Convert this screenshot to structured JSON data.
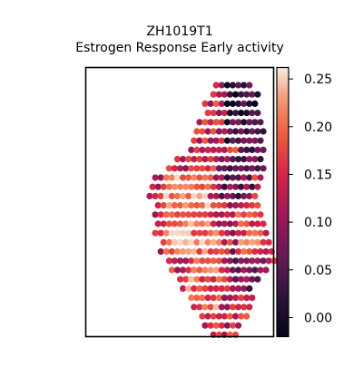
{
  "chart_data": {
    "type": "heatmap",
    "title": "ZH1019T1",
    "subtitle": "Estrogen Response Early activity",
    "xlabel": "",
    "ylabel": "",
    "grid": false,
    "colormap": "rocket",
    "colorbar": {
      "range": [
        -0.02,
        0.262
      ],
      "ticks": [
        0.0,
        0.05,
        0.1,
        0.15,
        0.2,
        0.25
      ],
      "tick_labels": [
        "0.00",
        "0.05",
        "0.10",
        "0.15",
        "0.20",
        "0.25"
      ],
      "position": "right"
    },
    "tissue_grid": {
      "rows": [
        {
          "row": 0,
          "start": 22,
          "end": 28
        },
        {
          "row": 1,
          "start": 21,
          "end": 29
        },
        {
          "row": 2,
          "start": 20,
          "end": 29
        },
        {
          "row": 3,
          "start": 20,
          "end": 29
        },
        {
          "row": 4,
          "start": 19,
          "end": 30
        },
        {
          "row": 5,
          "start": 18,
          "end": 30
        },
        {
          "row": 6,
          "start": 18,
          "end": 30
        },
        {
          "row": 7,
          "start": 17,
          "end": 30
        },
        {
          "row": 8,
          "start": 15,
          "end": 30
        },
        {
          "row": 9,
          "start": 13,
          "end": 30
        },
        {
          "row": 10,
          "start": 11,
          "end": 30
        },
        {
          "row": 11,
          "start": 10,
          "end": 29
        },
        {
          "row": 12,
          "start": 10,
          "end": 29
        },
        {
          "row": 13,
          "start": 11,
          "end": 29
        },
        {
          "row": 14,
          "start": 11,
          "end": 30
        },
        {
          "row": 15,
          "start": 11,
          "end": 30
        },
        {
          "row": 16,
          "start": 11,
          "end": 31
        },
        {
          "row": 17,
          "start": 12,
          "end": 31
        },
        {
          "row": 18,
          "start": 12,
          "end": 32
        },
        {
          "row": 19,
          "start": 13,
          "end": 32
        },
        {
          "row": 20,
          "start": 14,
          "end": 31
        },
        {
          "row": 21,
          "start": 15,
          "end": 29
        },
        {
          "row": 22,
          "start": 16,
          "end": 28
        },
        {
          "row": 23,
          "start": 17,
          "end": 28
        },
        {
          "row": 24,
          "start": 18,
          "end": 28
        },
        {
          "row": 25,
          "start": 19,
          "end": 27
        },
        {
          "row": 26,
          "start": 20,
          "end": 26
        },
        {
          "row": 27,
          "start": 21,
          "end": 25
        }
      ],
      "low_value_regions": [
        {
          "row_range": [
            0,
            6
          ],
          "col_range": [
            24,
            30
          ],
          "level": 0.03
        },
        {
          "row_range": [
            3,
            9
          ],
          "col_range": [
            26,
            30
          ],
          "level": 0.05
        },
        {
          "row_range": [
            8,
            12
          ],
          "col_range": [
            22,
            28
          ],
          "level": 0.07
        },
        {
          "row_range": [
            16,
            22
          ],
          "col_range": [
            25,
            30
          ],
          "level": 0.08
        }
      ],
      "high_value_regions": [
        {
          "row_range": [
            10,
            18
          ],
          "col_range": [
            13,
            20
          ],
          "level": 0.21
        },
        {
          "row_range": [
            16,
            24
          ],
          "col_range": [
            17,
            22
          ],
          "level": 0.19
        },
        {
          "row_range": [
            14,
            18
          ],
          "col_range": [
            26,
            30
          ],
          "level": 0.18
        }
      ]
    }
  }
}
